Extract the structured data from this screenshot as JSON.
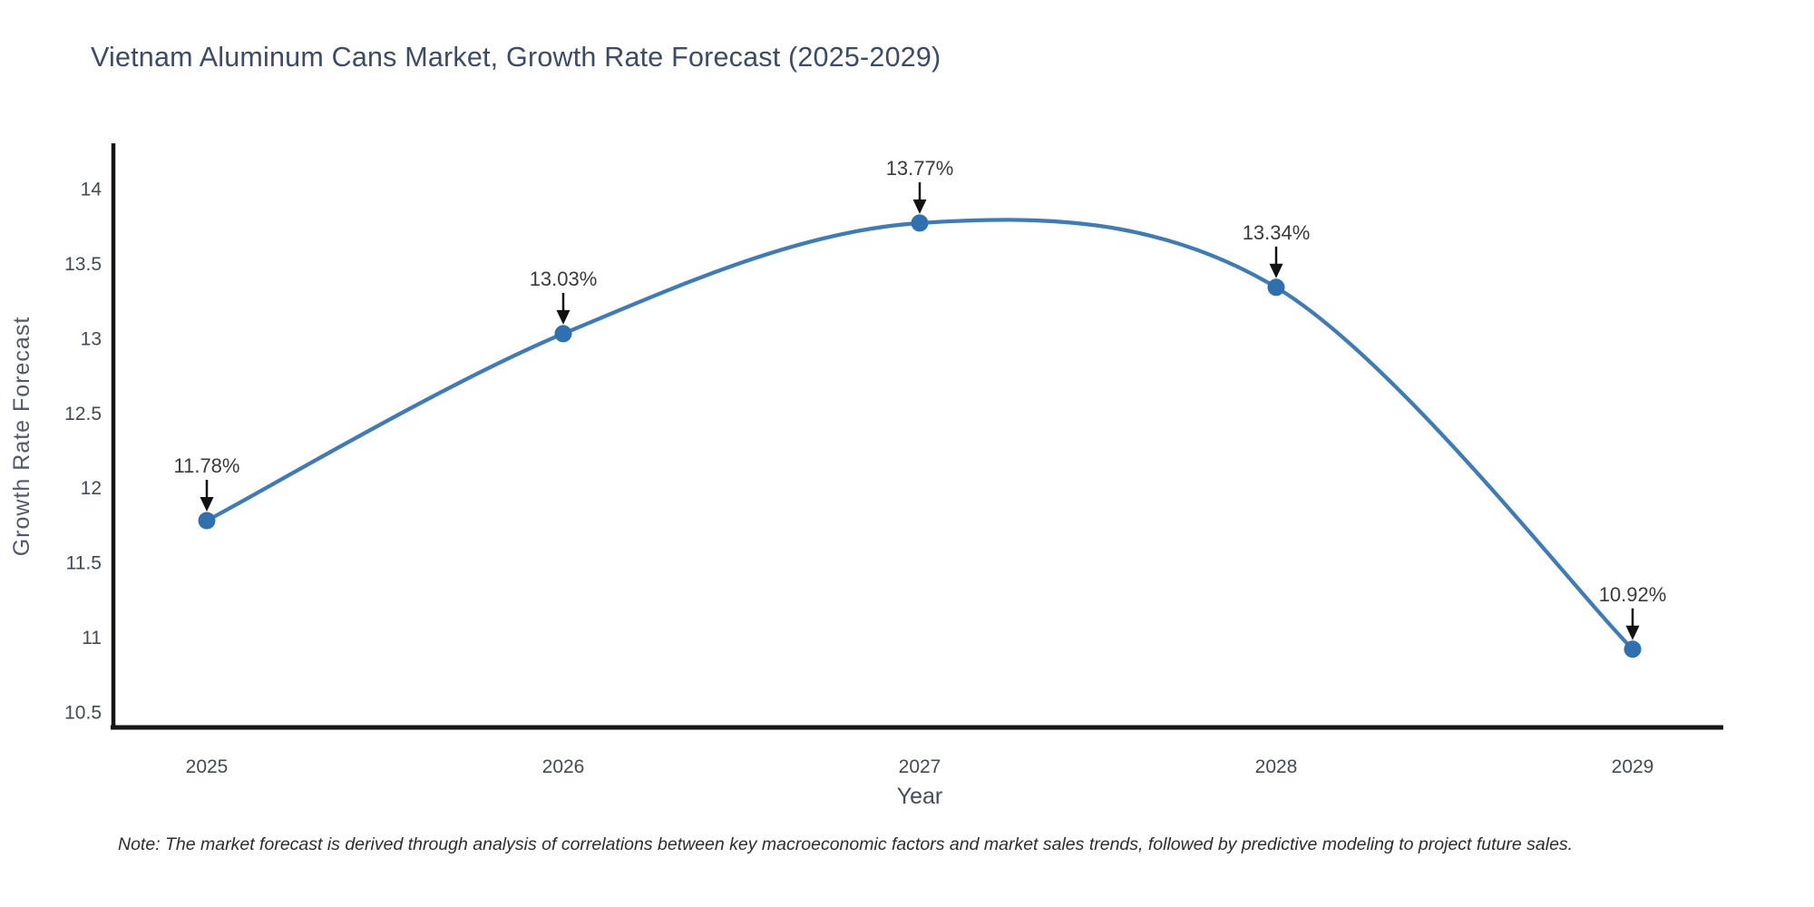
{
  "header": {
    "title": "Vietnam Aluminum Cans Market, Growth Rate Forecast (2025-2029)"
  },
  "chart_data": {
    "type": "line",
    "line_shape": "spline",
    "x": [
      "2025",
      "2026",
      "2027",
      "2028",
      "2029"
    ],
    "y": [
      11.78,
      13.03,
      13.77,
      13.34,
      10.92
    ],
    "point_labels": [
      "11.78%",
      "13.03%",
      "13.77%",
      "13.34%",
      "10.92%"
    ],
    "title": "Vietnam Aluminum Cans Market, Growth Rate Forecast (2025-2029)",
    "xlabel": "Year",
    "ylabel": "Growth Rate Forecast",
    "yticks": [
      10.5,
      11,
      11.5,
      12,
      12.5,
      13,
      13.5,
      14
    ],
    "ylim": [
      10.4,
      14.3
    ],
    "grid": false,
    "legend": "none",
    "annotations": "value labels with downward black arrows above each point",
    "colors": {
      "line": "#3e7cb9",
      "marker": "#2e70b0",
      "axis": "#161616",
      "arrow": "#111111",
      "title_text": "#3c4b68",
      "tick_text": "#424a56",
      "note_text": "#2d2d2d"
    }
  },
  "footer": {
    "note": "Note: The market forecast is derived through analysis of correlations between key macroeconomic factors and market sales trends, followed by predictive modeling to project future sales."
  }
}
